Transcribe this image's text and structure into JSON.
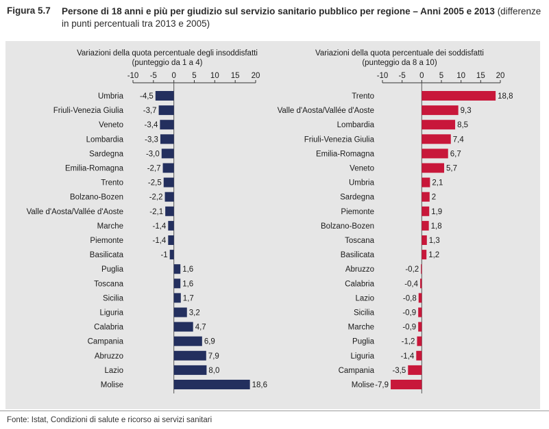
{
  "figure": {
    "label": "Figura 5.7",
    "title_bold": "Persone di 18 anni e più per giudizio sul servizio sanitario pubblico per regione – Anni 2005 e 2013",
    "title_normal": " (differenze in punti percentuali tra 2013 e 2005)"
  },
  "source": "Fonte: Istat, Condizioni di salute e ricorso ai servizi sanitari",
  "colors": {
    "left_bar": "#232f5e",
    "right_bar": "#c8173a",
    "panel": "#e6e6e6"
  },
  "chart_data": [
    {
      "type": "bar",
      "orientation": "horizontal",
      "title": "Variazioni della quota percentuale degli insoddisfatti",
      "subtitle": "(punteggio da 1 a 4)",
      "xlim": [
        -10,
        20
      ],
      "xticks": [
        "-10",
        "-5",
        "0",
        "5",
        "10",
        "15",
        "20"
      ],
      "categories": [
        "Umbria",
        "Friuli-Venezia Giulia",
        "Veneto",
        "Lombardia",
        "Sardegna",
        "Emilia-Romagna",
        "Trento",
        "Bolzano-Bozen",
        "Valle d'Aosta/Vallée d'Aoste",
        "Marche",
        "Piemonte",
        "Basilicata",
        "Puglia",
        "Toscana",
        "Sicilia",
        "Liguria",
        "Calabria",
        "Campania",
        "Abruzzo",
        "Lazio",
        "Molise"
      ],
      "values": [
        -4.5,
        -3.7,
        -3.4,
        -3.3,
        -3.0,
        -2.7,
        -2.5,
        -2.2,
        -2.1,
        -1.4,
        -1.4,
        -1,
        1.6,
        1.6,
        1.7,
        3.2,
        4.7,
        6.9,
        7.9,
        8.0,
        18.6
      ],
      "labels": [
        "-4,5",
        "-3,7",
        "-3,4",
        "-3,3",
        "-3,0",
        "-2,7",
        "-2,5",
        "-2,2",
        "-2,1",
        "-1,4",
        "-1,4",
        "-1",
        "1,6",
        "1,6",
        "1,7",
        "3,2",
        "4,7",
        "6,9",
        "7,9",
        "8,0",
        "18,6"
      ]
    },
    {
      "type": "bar",
      "orientation": "horizontal",
      "title": "Variazioni della quota percentuale dei soddisfatti",
      "subtitle": "(punteggio da 8 a 10)",
      "xlim": [
        -10,
        20
      ],
      "xticks": [
        "-10",
        "-5",
        "0",
        "5",
        "10",
        "15",
        "20"
      ],
      "categories": [
        "Trento",
        "Valle d'Aosta/Vallée d'Aoste",
        "Lombardia",
        "Friuli-Venezia Giulia",
        "Emilia-Romagna",
        "Veneto",
        "Umbria",
        "Sardegna",
        "Piemonte",
        "Bolzano-Bozen",
        "Toscana",
        "Basilicata",
        "Abruzzo",
        "Calabria",
        "Lazio",
        "Sicilia",
        "Marche",
        "Puglia",
        "Liguria",
        "Campania",
        "Molise"
      ],
      "values": [
        18.8,
        9.3,
        8.5,
        7.4,
        6.7,
        5.7,
        2.1,
        2,
        1.9,
        1.8,
        1.3,
        1.2,
        -0.2,
        -0.4,
        -0.8,
        -0.9,
        -0.9,
        -1.2,
        -1.4,
        -3.5,
        -7.9
      ],
      "labels": [
        "18,8",
        "9,3",
        "8,5",
        "7,4",
        "6,7",
        "5,7",
        "2,1",
        "2",
        "1,9",
        "1,8",
        "1,3",
        "1,2",
        "-0,2",
        "-0,4",
        "-0,8",
        "-0,9",
        "-0,9",
        "-1,2",
        "-1,4",
        "-3,5",
        "-7,9"
      ]
    }
  ]
}
